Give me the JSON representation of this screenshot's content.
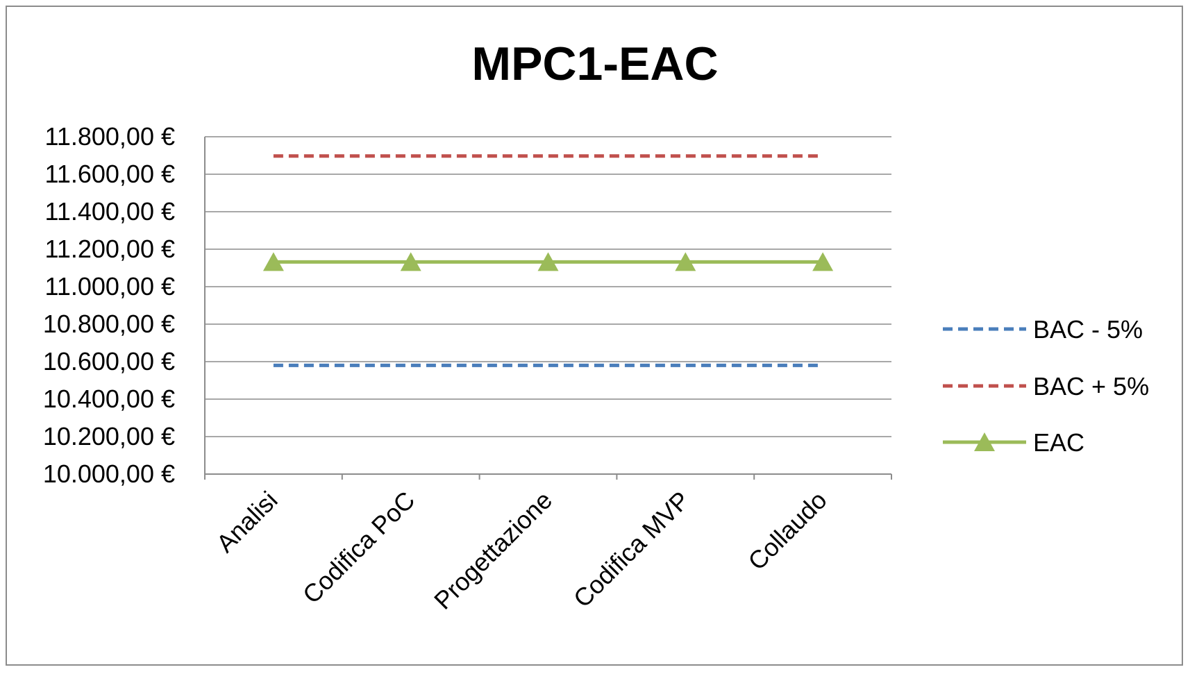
{
  "chart_data": {
    "type": "line",
    "title": "MPC1-EAC",
    "categories": [
      "Analisi",
      "Codifica PoC",
      "Progettazione",
      "Codifica MVP",
      "Collaudo"
    ],
    "ylim": [
      10000,
      11800
    ],
    "y_ticks": [
      10000,
      10200,
      10400,
      10600,
      10800,
      11000,
      11200,
      11400,
      11600,
      11800
    ],
    "y_tick_labels": [
      "10.000,00 €",
      "10.200,00 €",
      "10.400,00 €",
      "10.600,00 €",
      "10.800,00 €",
      "11.000,00 €",
      "11.200,00 €",
      "11.400,00 €",
      "11.600,00 €",
      "11.800,00 €"
    ],
    "grid": true,
    "legend_position": "right",
    "series": [
      {
        "name": "BAC - 5%",
        "values": [
          10580,
          10580,
          10580,
          10580,
          10580
        ],
        "color": "#4a7ebb",
        "style": "dashed",
        "marker": "none"
      },
      {
        "name": "BAC + 5%",
        "values": [
          11697,
          11697,
          11697,
          11697,
          11697
        ],
        "color": "#c0504d",
        "style": "dashed",
        "marker": "none"
      },
      {
        "name": "EAC",
        "values": [
          11132,
          11132,
          11132,
          11132,
          11132
        ],
        "color": "#9bbb59",
        "style": "solid",
        "marker": "triangle"
      }
    ]
  }
}
